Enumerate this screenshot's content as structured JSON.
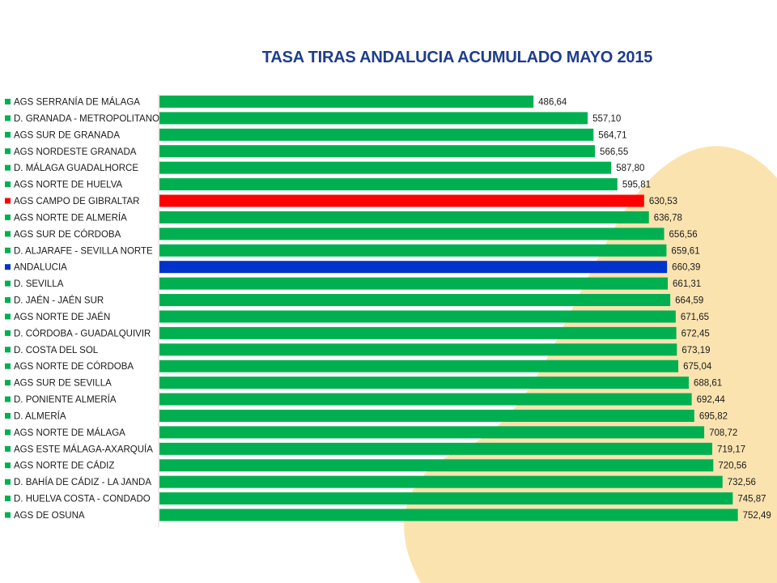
{
  "chart_data": {
    "type": "bar",
    "orientation": "horizontal",
    "title": "TASA TIRAS ANDALUCIA ACUMULADO MAYO 2015",
    "xlabel": "",
    "ylabel": "",
    "grid": false,
    "legend": "left",
    "colors": {
      "default": "#00b050",
      "highlight": "#ff0000",
      "total": "#0033cc",
      "title": "#1f3d8c",
      "background_shape": "#fbe3b0"
    },
    "series": [
      {
        "values": [
          486.64,
          557.1,
          564.71,
          566.55,
          587.8,
          595.81,
          630.53,
          636.78,
          656.56,
          659.61,
          660.39,
          661.31,
          664.59,
          671.65,
          672.45,
          673.19,
          675.04,
          688.61,
          692.44,
          695.82,
          708.72,
          719.17,
          720.56,
          732.56,
          745.87,
          752.49
        ]
      }
    ],
    "categories": [
      "AGS SERRANÍA DE MÁLAGA",
      "D. GRANADA - METROPOLITANO",
      "AGS SUR DE GRANADA",
      "AGS NORDESTE GRANADA",
      "D. MÁLAGA GUADALHORCE",
      "AGS NORTE DE HUELVA",
      "AGS CAMPO DE GIBRALTAR",
      "AGS NORTE DE ALMERÍA",
      "AGS SUR DE CÓRDOBA",
      "D. ALJARAFE - SEVILLA NORTE",
      "ANDALUCIA",
      "D. SEVILLA",
      "D. JAÉN - JAÉN SUR",
      "AGS NORTE DE JAÉN",
      "D. CÓRDOBA - GUADALQUIVIR",
      "D. COSTA DEL SOL",
      "AGS NORTE DE CÓRDOBA",
      "AGS SUR DE SEVILLA",
      "D. PONIENTE ALMERÍA",
      "D. ALMERÍA",
      "AGS NORTE DE MÁLAGA",
      "AGS ESTE MÁLAGA-AXARQUÍA",
      "AGS NORTE DE CÁDIZ",
      "D. BAHÍA DE CÁDIZ - LA JANDA",
      "D. HUELVA COSTA - CONDADO",
      "AGS DE OSUNA"
    ],
    "value_labels": [
      "486,64",
      "557,10",
      "564,71",
      "566,55",
      "587,80",
      "595,81",
      "630,53",
      "636,78",
      "656,56",
      "659,61",
      "660,39",
      "661,31",
      "664,59",
      "671,65",
      "672,45",
      "673,19",
      "675,04",
      "688,61",
      "692,44",
      "695,82",
      "708,72",
      "719,17",
      "720,56",
      "732,56",
      "745,87",
      "752,49"
    ],
    "bar_colors": [
      "default",
      "default",
      "default",
      "default",
      "default",
      "default",
      "highlight",
      "default",
      "default",
      "default",
      "total",
      "default",
      "default",
      "default",
      "default",
      "default",
      "default",
      "default",
      "default",
      "default",
      "default",
      "default",
      "default",
      "default",
      "default",
      "default"
    ]
  }
}
